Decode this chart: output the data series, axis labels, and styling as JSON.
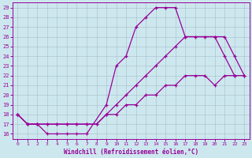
{
  "xlabel": "Windchill (Refroidissement éolien,°C)",
  "bg_color": "#cce8ee",
  "line_color": "#990099",
  "grid_color": "#aabbcc",
  "xlim": [
    -0.5,
    23.5
  ],
  "ylim": [
    15.5,
    29.5
  ],
  "yticks": [
    16,
    17,
    18,
    19,
    20,
    21,
    22,
    23,
    24,
    25,
    26,
    27,
    28,
    29
  ],
  "xticks": [
    0,
    1,
    2,
    3,
    4,
    5,
    6,
    7,
    8,
    9,
    10,
    11,
    12,
    13,
    14,
    15,
    16,
    17,
    18,
    19,
    20,
    21,
    22,
    23
  ],
  "line1_x": [
    0,
    1,
    2,
    3,
    4,
    5,
    6,
    7,
    9,
    10,
    11,
    12,
    13,
    14,
    15,
    16,
    17,
    20,
    21,
    22
  ],
  "line1_y": [
    18,
    17,
    17,
    16,
    16,
    16,
    16,
    16,
    19,
    23,
    24,
    27,
    28,
    29,
    29,
    29,
    26,
    26,
    24,
    22
  ],
  "line2_x": [
    0,
    1,
    2,
    3,
    4,
    5,
    6,
    7,
    8,
    9,
    10,
    11,
    12,
    13,
    14,
    15,
    16,
    17,
    18,
    19,
    20,
    21,
    22,
    23
  ],
  "line2_y": [
    18,
    17,
    17,
    17,
    17,
    17,
    17,
    17,
    17,
    18,
    19,
    20,
    21,
    22,
    23,
    24,
    25,
    26,
    26,
    26,
    26,
    26,
    24,
    22
  ],
  "line3_x": [
    0,
    1,
    2,
    3,
    4,
    5,
    6,
    7,
    8,
    9,
    10,
    11,
    12,
    13,
    14,
    15,
    16,
    17,
    18,
    19,
    20,
    21,
    22,
    23
  ],
  "line3_y": [
    18,
    17,
    17,
    17,
    17,
    17,
    17,
    17,
    17,
    18,
    18,
    19,
    19,
    20,
    20,
    21,
    21,
    22,
    22,
    22,
    21,
    22,
    22,
    22
  ]
}
